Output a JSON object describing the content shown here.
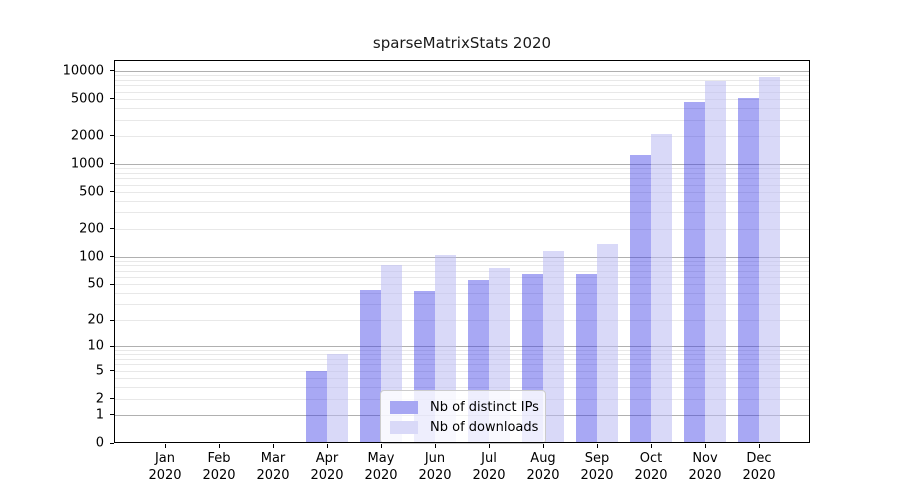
{
  "chart_data": {
    "type": "bar",
    "title": "sparseMatrixStats 2020",
    "categories": [
      "Jan 2020",
      "Feb 2020",
      "Mar 2020",
      "Apr 2020",
      "May 2020",
      "Jun 2020",
      "Jul 2020",
      "Aug 2020",
      "Sep 2020",
      "Oct 2020",
      "Nov 2020",
      "Dec 2020"
    ],
    "series": [
      {
        "name": "Nb of distinct IPs",
        "fill": "rgba(62,62,230,0.45)",
        "swatch": "#a7a7f3",
        "values": [
          0,
          0,
          0,
          5,
          43,
          42,
          56,
          64,
          64,
          1250,
          4680,
          5130
        ]
      },
      {
        "name": "Nb of downloads",
        "fill": "rgba(186,186,242,0.55)",
        "swatch": "#d9d9f8",
        "values": [
          0,
          0,
          0,
          8,
          80,
          105,
          75,
          115,
          136,
          2100,
          7870,
          8510
        ]
      }
    ],
    "xlabel": "",
    "ylabel": "",
    "yscale": "log1p",
    "ylim": [
      0,
      13100
    ],
    "yticks": [
      0,
      1,
      2,
      5,
      10,
      20,
      50,
      100,
      200,
      500,
      1000,
      2000,
      5000,
      10000
    ],
    "major_gridlines": [
      1,
      10,
      100,
      1000,
      10000
    ],
    "grid": true,
    "legend_position": "lower-center-inside",
    "colors": {
      "major_grid": "#b0b0b0",
      "minor_grid": "#e8e8e8",
      "axis": "#000000",
      "text": "#1a1a1a",
      "legend_border": "#cccccc"
    }
  }
}
